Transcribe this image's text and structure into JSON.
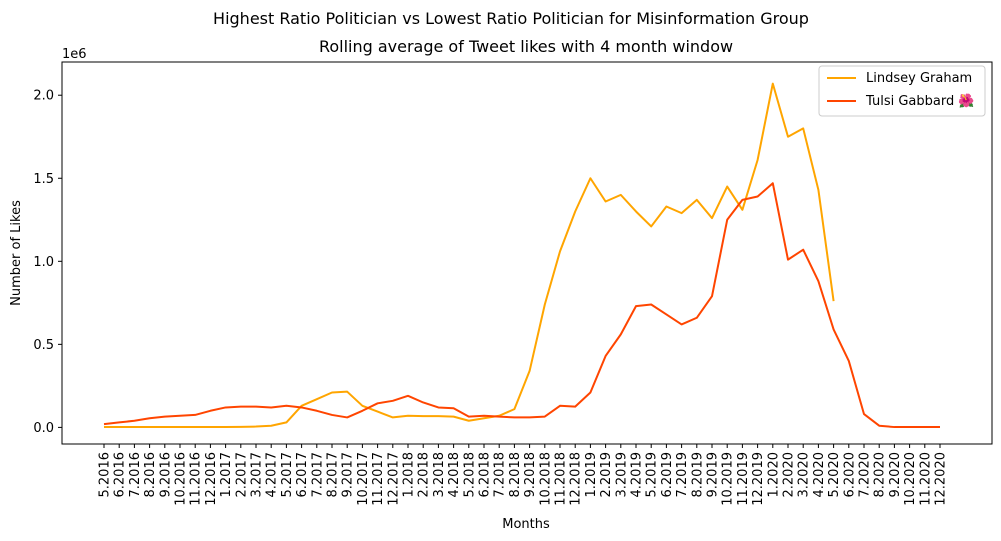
{
  "chart_data": {
    "type": "line",
    "suptitle": "Highest Ratio Politician vs Lowest Ratio Politician for Misinformation Group",
    "title": "Rolling average of Tweet likes with 4 month window",
    "xlabel": "Months",
    "ylabel": "Number of Likes",
    "y_offset_label": "1e6",
    "ylim": [
      -0.1,
      2.2
    ],
    "yticks": [
      0.0,
      0.5,
      1.0,
      1.5,
      2.0
    ],
    "ytick_labels": [
      "0.0",
      "0.5",
      "1.0",
      "1.5",
      "2.0"
    ],
    "grid": false,
    "legend_position": "top-right",
    "x": [
      "5.2016",
      "6.2016",
      "7.2016",
      "8.2016",
      "9.2016",
      "10.2016",
      "11.2016",
      "12.2016",
      "1.2017",
      "2.2017",
      "3.2017",
      "4.2017",
      "5.2017",
      "6.2017",
      "7.2017",
      "8.2017",
      "9.2017",
      "10.2017",
      "11.2017",
      "12.2017",
      "1.2018",
      "2.2018",
      "3.2018",
      "4.2018",
      "5.2018",
      "6.2018",
      "7.2018",
      "8.2018",
      "9.2018",
      "10.2018",
      "11.2018",
      "12.2018",
      "1.2019",
      "2.2019",
      "3.2019",
      "4.2019",
      "5.2019",
      "6.2019",
      "7.2019",
      "8.2019",
      "9.2019",
      "10.2019",
      "11.2019",
      "12.2019",
      "1.2020",
      "2.2020",
      "3.2020",
      "4.2020",
      "5.2020",
      "6.2020",
      "7.2020",
      "8.2020",
      "9.2020",
      "10.2020",
      "11.2020",
      "12.2020"
    ],
    "series": [
      {
        "name": "Lindsey Graham",
        "color": "#ffa500",
        "values": [
          0.002,
          0.002,
          0.002,
          0.002,
          0.002,
          0.002,
          0.002,
          0.002,
          0.002,
          0.003,
          0.005,
          0.01,
          0.03,
          0.13,
          0.17,
          0.21,
          0.215,
          0.13,
          0.095,
          0.06,
          0.07,
          0.068,
          0.068,
          0.065,
          0.04,
          0.055,
          0.07,
          0.11,
          0.34,
          0.74,
          1.06,
          1.3,
          1.5,
          1.36,
          1.4,
          1.3,
          1.21,
          1.33,
          1.29,
          1.37,
          1.26,
          1.45,
          1.31,
          1.61,
          2.07,
          1.75,
          1.8,
          1.43,
          0.76,
          null,
          null,
          null,
          null,
          null,
          null,
          null
        ]
      },
      {
        "name": "Tulsi Gabbard 🌺",
        "color": "#ff4500",
        "values": [
          0.02,
          0.03,
          0.04,
          0.055,
          0.065,
          0.07,
          0.075,
          0.1,
          0.12,
          0.125,
          0.125,
          0.12,
          0.13,
          0.12,
          0.1,
          0.075,
          0.06,
          0.1,
          0.145,
          0.16,
          0.19,
          0.15,
          0.12,
          0.115,
          0.065,
          0.07,
          0.065,
          0.06,
          0.06,
          0.065,
          0.13,
          0.125,
          0.21,
          0.43,
          0.56,
          0.73,
          0.74,
          0.68,
          0.62,
          0.66,
          0.79,
          1.25,
          1.37,
          1.39,
          1.47,
          1.01,
          1.07,
          0.88,
          0.59,
          0.4,
          0.08,
          0.01,
          0.002,
          0.002,
          0.002,
          0.002
        ]
      }
    ]
  }
}
